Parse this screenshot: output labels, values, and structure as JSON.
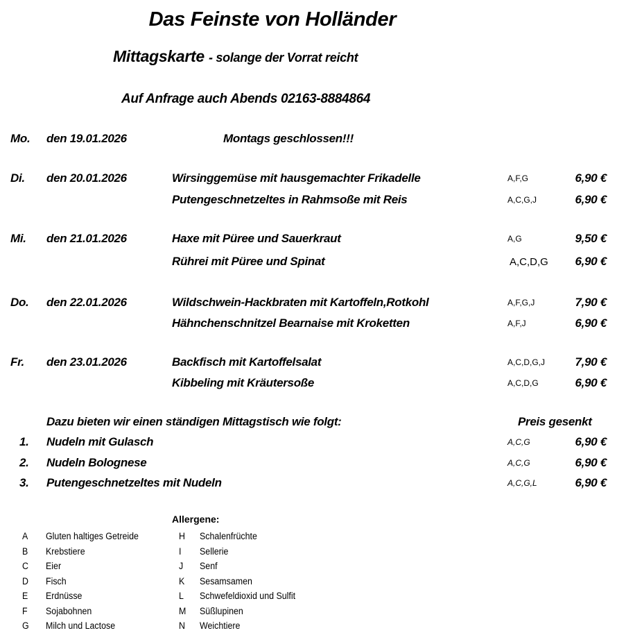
{
  "header": {
    "title": "Das Feinste von Holländer",
    "subtitle_main": "Mittagskarte",
    "subtitle_note": "- solange der Vorrat reicht",
    "contact": "Auf Anfrage auch Abends  02163-8884864"
  },
  "days": [
    {
      "day": "Mo.",
      "date": "den 19.01.2026",
      "note": "Montags geschlossen!!!",
      "dishes": []
    },
    {
      "day": "Di.",
      "date": "den 20.01.2026",
      "dishes": [
        {
          "name": "Wirsinggemüse mit hausgemachter Frikadelle",
          "allergens": "A,F,G",
          "price": "6,90 €"
        },
        {
          "name": "Putengeschnetzeltes in Rahmsoße mit Reis",
          "allergens": "A,C,G,J",
          "price": "6,90 €"
        }
      ]
    },
    {
      "day": "Mi.",
      "date": "den 21.01.2026",
      "dishes": [
        {
          "name": "Haxe mit Püree und Sauerkraut",
          "allergens": "A,G",
          "price": "9,50 €"
        },
        {
          "name": "Rührei mit Püree und Spinat",
          "allergens": "A,C,D,G",
          "price": "6,90 €"
        }
      ]
    },
    {
      "day": "Do.",
      "date": "den 22.01.2026",
      "dishes": [
        {
          "name": "Wildschwein-Hackbraten mit Kartoffeln,Rotkohl",
          "allergens": "A,F,G,J",
          "price": "7,90 €"
        },
        {
          "name": "Hähnchenschnitzel Bearnaise mit Kroketten",
          "allergens": "A,F,J",
          "price": "6,90 €"
        }
      ]
    },
    {
      "day": "Fr.",
      "date": "den 23.01.2026",
      "dishes": [
        {
          "name": "Backfisch mit Kartoffelsalat",
          "allergens": "A,C,D,G,J",
          "price": "7,90 €"
        },
        {
          "name": "Kibbeling mit Kräutersoße",
          "allergens": "A,C,D,G",
          "price": "6,90 €"
        }
      ]
    }
  ],
  "standing": {
    "intro": "Dazu bieten wir einen ständigen Mittagstisch wie folgt:",
    "price_note": "Preis gesenkt",
    "items": [
      {
        "num": "1.",
        "name": "Nudeln mit Gulasch",
        "allergens": "A,C,G",
        "price": "6,90 €"
      },
      {
        "num": "2.",
        "name": "Nudeln Bolognese",
        "allergens": "A,C,G",
        "price": "6,90 €"
      },
      {
        "num": "3.",
        "name": "Putengeschnetzeltes mit Nudeln",
        "allergens": "A,C,G,L",
        "price": "6,90 €"
      }
    ]
  },
  "allergens": {
    "title": "Allergene:",
    "items": [
      {
        "code": "A",
        "label": "Gluten haltiges Getreide"
      },
      {
        "code": "B",
        "label": "Krebstiere"
      },
      {
        "code": "C",
        "label": "Eier"
      },
      {
        "code": "D",
        "label": "Fisch"
      },
      {
        "code": "E",
        "label": "Erdnüsse"
      },
      {
        "code": "F",
        "label": "Sojabohnen"
      },
      {
        "code": "G",
        "label": "Milch und Lactose"
      },
      {
        "code": "H",
        "label": "Schalenfrüchte"
      },
      {
        "code": "I",
        "label": "Sellerie"
      },
      {
        "code": "J",
        "label": "Senf"
      },
      {
        "code": "K",
        "label": "Sesamsamen"
      },
      {
        "code": "L",
        "label": "Schwefeldioxid und Sulfit"
      },
      {
        "code": "M",
        "label": "Süßlupinen"
      },
      {
        "code": "N",
        "label": "Weichtiere"
      }
    ]
  }
}
